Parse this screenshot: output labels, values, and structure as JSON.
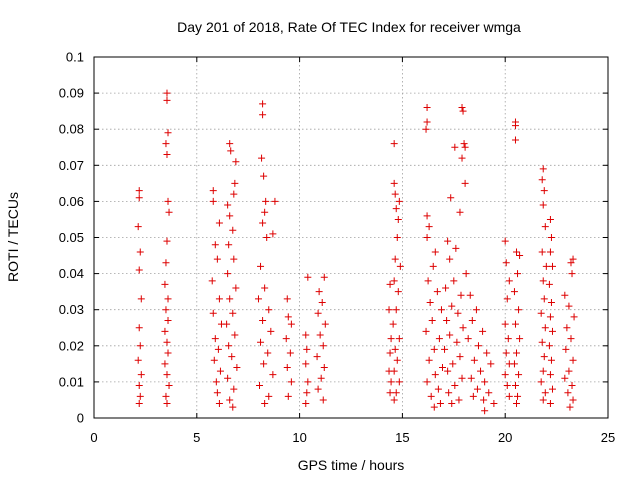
{
  "chart_data": {
    "type": "scatter",
    "title": "Day 201 of 2018, Rate Of TEC Index for receiver wmga",
    "xlabel": "GPS time / hours",
    "ylabel": "ROTI / TECUs",
    "xlim": [
      0,
      25
    ],
    "ylim": [
      0,
      0.1
    ],
    "xticks": [
      "0",
      "5",
      "10",
      "15",
      "20",
      "25"
    ],
    "xtick_values": [
      0,
      5,
      10,
      15,
      20,
      25
    ],
    "yticks": [
      "0",
      "0.01",
      "0.02",
      "0.03",
      "0.04",
      "0.05",
      "0.06",
      "0.07",
      "0.08",
      "0.09",
      "0.1"
    ],
    "ytick_values": [
      0,
      0.01,
      0.02,
      0.03,
      0.04,
      0.05,
      0.06,
      0.07,
      0.08,
      0.09,
      0.1
    ],
    "grid": true,
    "marker": "plus",
    "color": "#dd0000",
    "series": [
      {
        "values": [
          [
            2.2,
            0.063
          ],
          [
            2.2,
            0.061
          ],
          [
            2.15,
            0.053
          ],
          [
            2.25,
            0.046
          ],
          [
            2.2,
            0.041
          ],
          [
            2.3,
            0.033
          ],
          [
            2.2,
            0.025
          ],
          [
            2.25,
            0.02
          ],
          [
            2.15,
            0.016
          ],
          [
            2.3,
            0.012
          ],
          [
            2.2,
            0.009
          ],
          [
            2.25,
            0.006
          ],
          [
            2.2,
            0.004
          ],
          [
            3.55,
            0.09
          ],
          [
            3.55,
            0.088
          ],
          [
            3.6,
            0.079
          ],
          [
            3.5,
            0.076
          ],
          [
            3.55,
            0.073
          ],
          [
            3.6,
            0.06
          ],
          [
            3.65,
            0.057
          ],
          [
            3.55,
            0.049
          ],
          [
            3.5,
            0.043
          ],
          [
            3.45,
            0.037
          ],
          [
            3.6,
            0.033
          ],
          [
            3.5,
            0.03
          ],
          [
            3.6,
            0.027
          ],
          [
            3.45,
            0.024
          ],
          [
            3.55,
            0.021
          ],
          [
            3.6,
            0.018
          ],
          [
            3.45,
            0.015
          ],
          [
            3.55,
            0.012
          ],
          [
            3.65,
            0.009
          ],
          [
            3.5,
            0.006
          ],
          [
            3.55,
            0.004
          ],
          [
            5.8,
            0.063
          ],
          [
            5.8,
            0.06
          ],
          [
            6.1,
            0.054
          ],
          [
            5.9,
            0.048
          ],
          [
            6.0,
            0.044
          ],
          [
            5.75,
            0.038
          ],
          [
            6.1,
            0.033
          ],
          [
            5.8,
            0.029
          ],
          [
            6.2,
            0.026
          ],
          [
            5.9,
            0.022
          ],
          [
            6.05,
            0.019
          ],
          [
            5.85,
            0.016
          ],
          [
            6.15,
            0.013
          ],
          [
            5.95,
            0.01
          ],
          [
            6.0,
            0.007
          ],
          [
            6.1,
            0.004
          ],
          [
            6.6,
            0.076
          ],
          [
            6.65,
            0.074
          ],
          [
            6.9,
            0.071
          ],
          [
            6.85,
            0.065
          ],
          [
            6.8,
            0.062
          ],
          [
            6.5,
            0.059
          ],
          [
            6.6,
            0.056
          ],
          [
            6.75,
            0.052
          ],
          [
            6.55,
            0.048
          ],
          [
            6.8,
            0.044
          ],
          [
            6.5,
            0.04
          ],
          [
            6.9,
            0.036
          ],
          [
            6.6,
            0.033
          ],
          [
            6.75,
            0.029
          ],
          [
            6.45,
            0.026
          ],
          [
            6.85,
            0.023
          ],
          [
            6.55,
            0.02
          ],
          [
            6.7,
            0.017
          ],
          [
            6.95,
            0.014
          ],
          [
            6.5,
            0.011
          ],
          [
            6.8,
            0.008
          ],
          [
            6.6,
            0.005
          ],
          [
            6.75,
            0.003
          ],
          [
            8.2,
            0.087
          ],
          [
            8.2,
            0.084
          ],
          [
            8.15,
            0.072
          ],
          [
            8.25,
            0.067
          ],
          [
            8.35,
            0.06
          ],
          [
            8.3,
            0.057
          ],
          [
            8.2,
            0.054
          ],
          [
            8.4,
            0.05
          ],
          [
            8.7,
            0.051
          ],
          [
            8.8,
            0.06
          ],
          [
            8.1,
            0.042
          ],
          [
            8.3,
            0.036
          ],
          [
            8.0,
            0.033
          ],
          [
            8.5,
            0.03
          ],
          [
            8.2,
            0.027
          ],
          [
            8.6,
            0.024
          ],
          [
            8.1,
            0.021
          ],
          [
            8.45,
            0.018
          ],
          [
            8.25,
            0.015
          ],
          [
            8.7,
            0.012
          ],
          [
            8.05,
            0.009
          ],
          [
            8.5,
            0.006
          ],
          [
            8.3,
            0.004
          ],
          [
            9.4,
            0.033
          ],
          [
            9.45,
            0.028
          ],
          [
            9.6,
            0.026
          ],
          [
            9.35,
            0.022
          ],
          [
            9.55,
            0.018
          ],
          [
            9.4,
            0.014
          ],
          [
            9.6,
            0.01
          ],
          [
            9.45,
            0.006
          ],
          [
            10.4,
            0.039
          ],
          [
            10.3,
            0.023
          ],
          [
            10.35,
            0.019
          ],
          [
            10.3,
            0.015
          ],
          [
            10.4,
            0.01
          ],
          [
            10.35,
            0.007
          ],
          [
            10.3,
            0.004
          ],
          [
            10.95,
            0.035
          ],
          [
            11.2,
            0.039
          ],
          [
            11.1,
            0.032
          ],
          [
            10.9,
            0.029
          ],
          [
            11.25,
            0.026
          ],
          [
            11.0,
            0.023
          ],
          [
            11.15,
            0.02
          ],
          [
            10.85,
            0.017
          ],
          [
            11.2,
            0.014
          ],
          [
            11.05,
            0.011
          ],
          [
            10.9,
            0.008
          ],
          [
            11.15,
            0.005
          ],
          [
            14.4,
            0.037
          ],
          [
            14.35,
            0.03
          ],
          [
            14.45,
            0.022
          ],
          [
            14.4,
            0.018
          ],
          [
            14.35,
            0.013
          ],
          [
            14.45,
            0.01
          ],
          [
            14.4,
            0.007
          ],
          [
            14.6,
            0.076
          ],
          [
            14.6,
            0.065
          ],
          [
            14.65,
            0.062
          ],
          [
            14.85,
            0.06
          ],
          [
            14.7,
            0.058
          ],
          [
            14.8,
            0.055
          ],
          [
            14.75,
            0.05
          ],
          [
            14.65,
            0.044
          ],
          [
            14.9,
            0.042
          ],
          [
            14.6,
            0.038
          ],
          [
            14.8,
            0.035
          ],
          [
            14.7,
            0.03
          ],
          [
            14.55,
            0.026
          ],
          [
            14.85,
            0.022
          ],
          [
            14.65,
            0.019
          ],
          [
            14.75,
            0.016
          ],
          [
            14.6,
            0.013
          ],
          [
            14.85,
            0.01
          ],
          [
            14.7,
            0.007
          ],
          [
            14.6,
            0.005
          ],
          [
            16.2,
            0.086
          ],
          [
            16.2,
            0.082
          ],
          [
            16.15,
            0.08
          ],
          [
            16.2,
            0.056
          ],
          [
            16.3,
            0.053
          ],
          [
            16.2,
            0.05
          ],
          [
            16.6,
            0.046
          ],
          [
            16.5,
            0.042
          ],
          [
            16.25,
            0.038
          ],
          [
            16.7,
            0.035
          ],
          [
            16.35,
            0.032
          ],
          [
            16.9,
            0.03
          ],
          [
            16.45,
            0.027
          ],
          [
            16.15,
            0.024
          ],
          [
            16.8,
            0.022
          ],
          [
            16.55,
            0.019
          ],
          [
            16.3,
            0.016
          ],
          [
            16.95,
            0.014
          ],
          [
            16.6,
            0.012
          ],
          [
            16.2,
            0.01
          ],
          [
            16.75,
            0.008
          ],
          [
            16.4,
            0.006
          ],
          [
            16.85,
            0.004
          ],
          [
            16.55,
            0.003
          ],
          [
            17.9,
            0.086
          ],
          [
            17.95,
            0.085
          ],
          [
            17.55,
            0.075
          ],
          [
            18.0,
            0.076
          ],
          [
            18.05,
            0.075
          ],
          [
            17.9,
            0.072
          ],
          [
            17.35,
            0.061
          ],
          [
            18.05,
            0.065
          ],
          [
            17.8,
            0.057
          ],
          [
            17.2,
            0.049
          ],
          [
            17.6,
            0.047
          ],
          [
            17.3,
            0.044
          ],
          [
            18.1,
            0.04
          ],
          [
            17.5,
            0.038
          ],
          [
            17.1,
            0.036
          ],
          [
            17.85,
            0.034
          ],
          [
            17.4,
            0.031
          ],
          [
            17.7,
            0.029
          ],
          [
            17.15,
            0.027
          ],
          [
            17.95,
            0.025
          ],
          [
            17.3,
            0.023
          ],
          [
            17.65,
            0.021
          ],
          [
            17.05,
            0.019
          ],
          [
            17.8,
            0.017
          ],
          [
            17.45,
            0.015
          ],
          [
            17.2,
            0.013
          ],
          [
            17.9,
            0.011
          ],
          [
            17.55,
            0.009
          ],
          [
            17.25,
            0.007
          ],
          [
            17.75,
            0.005
          ],
          [
            17.4,
            0.004
          ],
          [
            18.3,
            0.034
          ],
          [
            18.6,
            0.03
          ],
          [
            18.4,
            0.027
          ],
          [
            18.9,
            0.024
          ],
          [
            18.2,
            0.022
          ],
          [
            18.7,
            0.02
          ],
          [
            19.1,
            0.018
          ],
          [
            18.5,
            0.016
          ],
          [
            19.3,
            0.015
          ],
          [
            18.8,
            0.013
          ],
          [
            18.35,
            0.011
          ],
          [
            19.0,
            0.01
          ],
          [
            18.65,
            0.008
          ],
          [
            19.2,
            0.007
          ],
          [
            18.45,
            0.006
          ],
          [
            18.95,
            0.005
          ],
          [
            19.45,
            0.004
          ],
          [
            19.0,
            0.002
          ],
          [
            20.0,
            0.049
          ],
          [
            20.05,
            0.043
          ],
          [
            20.2,
            0.038
          ],
          [
            20.1,
            0.033
          ],
          [
            20.0,
            0.026
          ],
          [
            20.15,
            0.022
          ],
          [
            20.05,
            0.018
          ],
          [
            20.2,
            0.015
          ],
          [
            20.0,
            0.012
          ],
          [
            20.1,
            0.009
          ],
          [
            20.2,
            0.006
          ],
          [
            20.5,
            0.082
          ],
          [
            20.5,
            0.081
          ],
          [
            20.5,
            0.077
          ],
          [
            20.55,
            0.046
          ],
          [
            20.7,
            0.045
          ],
          [
            20.6,
            0.04
          ],
          [
            20.45,
            0.035
          ],
          [
            20.65,
            0.03
          ],
          [
            20.5,
            0.026
          ],
          [
            20.7,
            0.022
          ],
          [
            20.55,
            0.018
          ],
          [
            20.45,
            0.015
          ],
          [
            20.65,
            0.012
          ],
          [
            20.5,
            0.009
          ],
          [
            20.6,
            0.006
          ],
          [
            20.55,
            0.004
          ],
          [
            21.85,
            0.069
          ],
          [
            21.8,
            0.066
          ],
          [
            21.9,
            0.063
          ],
          [
            21.85,
            0.059
          ],
          [
            21.95,
            0.053
          ],
          [
            21.8,
            0.046
          ],
          [
            22.0,
            0.042
          ],
          [
            21.85,
            0.038
          ],
          [
            21.9,
            0.033
          ],
          [
            21.75,
            0.029
          ],
          [
            21.95,
            0.025
          ],
          [
            21.8,
            0.021
          ],
          [
            21.9,
            0.017
          ],
          [
            21.85,
            0.013
          ],
          [
            21.75,
            0.01
          ],
          [
            21.95,
            0.007
          ],
          [
            21.85,
            0.005
          ],
          [
            22.2,
            0.055
          ],
          [
            22.25,
            0.05
          ],
          [
            22.2,
            0.046
          ],
          [
            22.3,
            0.042
          ],
          [
            22.15,
            0.037
          ],
          [
            22.25,
            0.032
          ],
          [
            22.2,
            0.028
          ],
          [
            22.3,
            0.024
          ],
          [
            22.15,
            0.02
          ],
          [
            22.25,
            0.016
          ],
          [
            22.2,
            0.012
          ],
          [
            22.3,
            0.008
          ],
          [
            22.2,
            0.004
          ],
          [
            23.2,
            0.043
          ],
          [
            23.3,
            0.044
          ],
          [
            23.25,
            0.04
          ],
          [
            22.9,
            0.034
          ],
          [
            23.1,
            0.031
          ],
          [
            23.35,
            0.028
          ],
          [
            23.0,
            0.025
          ],
          [
            23.2,
            0.022
          ],
          [
            22.95,
            0.019
          ],
          [
            23.3,
            0.016
          ],
          [
            23.1,
            0.013
          ],
          [
            22.9,
            0.011
          ],
          [
            23.25,
            0.009
          ],
          [
            23.05,
            0.007
          ],
          [
            23.3,
            0.005
          ],
          [
            23.15,
            0.003
          ]
        ]
      }
    ]
  }
}
